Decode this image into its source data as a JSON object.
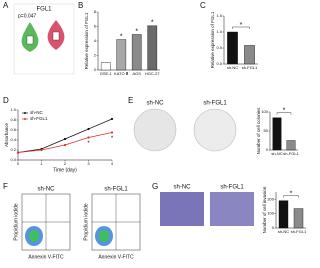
{
  "panel_labels": [
    "A",
    "B",
    "C",
    "D",
    "E",
    "F",
    "G"
  ],
  "violin": {
    "title": "FGL1",
    "annotation": "p=0.047"
  },
  "colony": {
    "titles": [
      "sh-NC",
      "sh-FGL1"
    ]
  },
  "flow": {
    "titles": [
      "sh-NC",
      "sh-FGL1"
    ],
    "xlabel": "Annexin V-FITC",
    "ylabel": "Propidium iodide"
  },
  "invasion": {
    "titles": [
      "sh-NC",
      "sh-FGL1"
    ]
  },
  "chart_data": [
    {
      "type": "bar",
      "ylabel": "Relative expression of FGL1",
      "categories": [
        "GSE-1",
        "KATO Ⅲ",
        "AGS",
        "HGC-27"
      ],
      "values": [
        1,
        4.2,
        4.9,
        6.1
      ],
      "colors": [
        "#ffffff",
        "#a8a8a8",
        "#8a8a8a",
        "#6a6a6a"
      ],
      "ylim": [
        0,
        8
      ],
      "yticks": [
        0,
        2,
        4,
        6,
        8
      ],
      "significance_marker": "*",
      "significant": [
        false,
        true,
        true,
        true
      ]
    },
    {
      "type": "bar",
      "ylabel": "Relative expression of FGL1",
      "categories": [
        "sh-NC",
        "sh-FGL1"
      ],
      "values": [
        1.0,
        0.58
      ],
      "colors": [
        "#111111",
        "#8a8a8a"
      ],
      "ylim": [
        0,
        1.5
      ],
      "yticks": [
        {
          "value": 0,
          "label": "0.0"
        },
        0.5,
        {
          "value": 1,
          "label": "1.0"
        },
        1.5
      ],
      "significance_marker": "*"
    },
    {
      "type": "line",
      "xlabel": "Time (day)",
      "ylabel": "Absorbance",
      "x": [
        0,
        1,
        2,
        3,
        4
      ],
      "series": [
        {
          "name": "sh-NC",
          "color": "#111111",
          "values": [
            0.15,
            0.22,
            0.42,
            0.62,
            0.82
          ]
        },
        {
          "name": "sh-FGL1",
          "color": "#e03030",
          "values": [
            0.15,
            0.2,
            0.3,
            0.45,
            0.55
          ]
        }
      ],
      "xlim": [
        0,
        4
      ],
      "xticks": [
        0,
        1,
        2,
        3,
        4
      ],
      "ylim": [
        0,
        1
      ],
      "yticks": [
        {
          "value": 0,
          "label": "0.0"
        },
        0.2,
        0.4,
        0.6,
        0.8,
        {
          "value": 1,
          "label": "1.0"
        }
      ],
      "significance_marker": "*",
      "significant_x": [
        3,
        4
      ],
      "legend": "upper left"
    },
    {
      "type": "bar",
      "ylabel": "Number of cell colonies",
      "categories": [
        "sh-NC",
        "sh-FGL1"
      ],
      "values": [
        85,
        25
      ],
      "colors": [
        "#111111",
        "#8a8a8a"
      ],
      "ylim": [
        0,
        100
      ],
      "yticks": [
        0,
        50,
        100
      ],
      "significance_marker": "*"
    },
    {
      "type": "bar",
      "ylabel": "Number of cell invasion",
      "categories": [
        "sh-NC",
        "sh-FGL1"
      ],
      "values": [
        190,
        135
      ],
      "colors": [
        "#111111",
        "#8a8a8a"
      ],
      "ylim": [
        0,
        250
      ],
      "yticks": [
        0,
        100,
        200
      ],
      "significance_marker": "*"
    }
  ]
}
